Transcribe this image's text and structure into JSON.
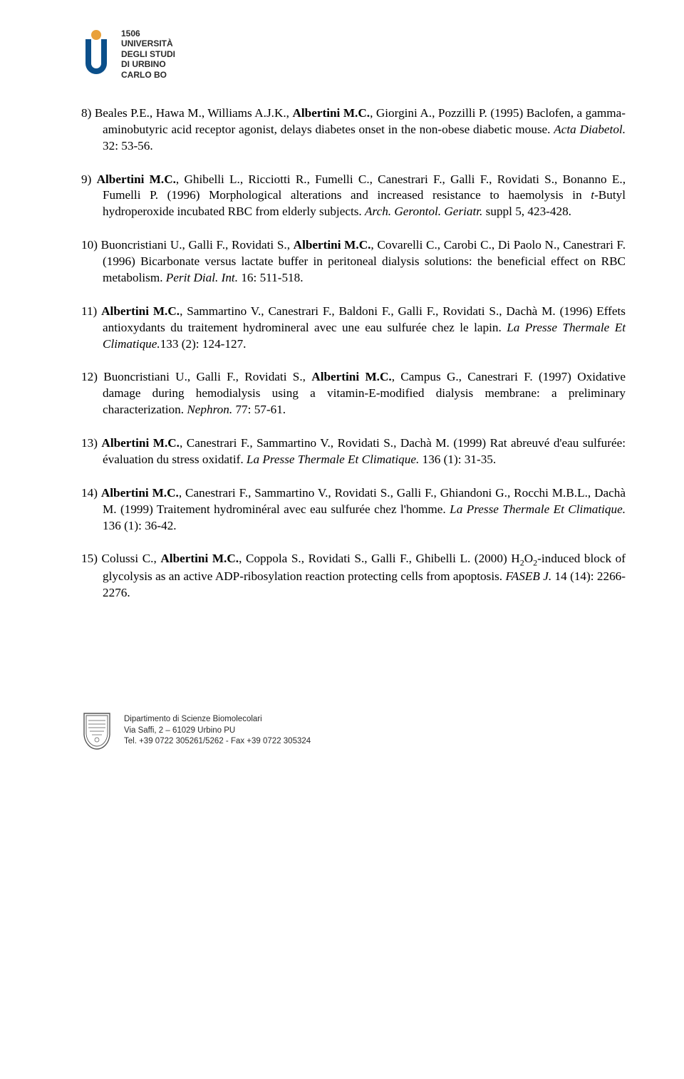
{
  "institution": {
    "year": "1506",
    "line1": "UNIVERSITÀ",
    "line2": "DEGLI STUDI",
    "line3": "DI URBINO",
    "line4": "CARLO BO",
    "logo_colors": {
      "blue": "#0b4f8a",
      "orange": "#e9a13b"
    }
  },
  "references": [
    {
      "num": "8)",
      "parts": [
        {
          "t": "Beales P.E., Hawa M., Williams A.J.K., "
        },
        {
          "t": "Albertini M.",
          "b": true
        },
        {
          "t": "C.",
          "b": true
        },
        {
          "t": ", Giorgini A., Pozzilli P. (1995) Baclofen, a gamma-aminobutyric acid receptor agonist, delays diabetes onset in the non-obese diabetic mouse. "
        },
        {
          "t": "Acta Diabetol.",
          "i": true
        },
        {
          "t": " 32: 53-56."
        }
      ]
    },
    {
      "num": "9)",
      "parts": [
        {
          "t": "Albertini M.",
          "b": true
        },
        {
          "t": "C.",
          "b": true
        },
        {
          "t": ", Ghibelli L., Ricciotti R., Fumelli C., Canestrari F., Galli F., Rovidati S., Bonanno E., Fumelli P. (1996) Morphological alterations and increased resistance to haemolysis in "
        },
        {
          "t": "t",
          "i": true
        },
        {
          "t": "-Butyl hydroperoxide incubated RBC from elderly subjects. "
        },
        {
          "t": "Arch. Gerontol. Geriatr.",
          "i": true
        },
        {
          "t": " suppl 5, 423-428."
        }
      ]
    },
    {
      "num": "10)",
      "parts": [
        {
          "t": "Buoncristiani U., Galli F., Rovidati S., "
        },
        {
          "t": "Albertini M.",
          "b": true
        },
        {
          "t": "C.",
          "b": true
        },
        {
          "t": ", Covarelli C., Carobi C., Di Paolo N., Canestrari F. (1996) Bicarbonate versus lactate buffer in peritoneal dialysis solutions: the beneficial effect on RBC metabolism. "
        },
        {
          "t": "Perit Dial. Int.",
          "i": true
        },
        {
          "t": " 16: 511-518."
        }
      ]
    },
    {
      "num": "11)",
      "parts": [
        {
          "t": "Albertini M.",
          "b": true
        },
        {
          "t": "C.",
          "b": true
        },
        {
          "t": ", Sammartino V., Canestrari F., Baldoni F., Galli F., Rovidati S., Dachà M. (1996) Effets antioxydants du traitement hydromineral avec une eau sulfurée chez le lapin. "
        },
        {
          "t": "La Presse Thermale Et Climatique.",
          "i": true
        },
        {
          "t": "133 (2): 124-127."
        }
      ]
    },
    {
      "num": "12)",
      "parts": [
        {
          "t": "Buoncristiani U., Galli F., Rovidati S., "
        },
        {
          "t": "Albertini M.",
          "b": true
        },
        {
          "t": "C.",
          "b": true
        },
        {
          "t": ", Campus G., Canestrari F. (1997) Oxidative damage during hemodialysis using a vitamin-E-modified dialysis membrane: a preliminary characterization. "
        },
        {
          "t": "Nephron.",
          "i": true
        },
        {
          "t": " 77: 57-61."
        }
      ]
    },
    {
      "num": "13)",
      "parts": [
        {
          "t": "Albertini M.",
          "b": true
        },
        {
          "t": "C.",
          "b": true
        },
        {
          "t": ", Canestrari F., Sammartino V., Rovidati S., Dachà M. (1999) Rat abreuvé d'eau sulfurée: évaluation du stress oxidatif. "
        },
        {
          "t": "La Presse Thermale Et Climatique.",
          "i": true
        },
        {
          "t": " 136 (1): 31-35."
        }
      ]
    },
    {
      "num": "14)",
      "parts": [
        {
          "t": "Albertini M.",
          "b": true
        },
        {
          "t": "C.",
          "b": true
        },
        {
          "t": ", Canestrari F., Sammartino V., Rovidati S., Galli F., Ghiandoni G., Rocchi M.B.L., Dachà M. (1999) Traitement hydrominéral avec eau sulfurée chez l'homme. "
        },
        {
          "t": "La Presse Thermale Et Climatique.",
          "i": true
        },
        {
          "t": " 136 (1): 36-42."
        }
      ]
    },
    {
      "num": "15)",
      "parts": [
        {
          "t": "Colussi C., "
        },
        {
          "t": "Albertini M.",
          "b": true
        },
        {
          "t": "C.",
          "b": true
        },
        {
          "t": ", Coppola S., Rovidati S., Galli F., Ghibelli L. (2000) H"
        },
        {
          "t": "2",
          "sub": true
        },
        {
          "t": "O"
        },
        {
          "t": "2",
          "sub": true
        },
        {
          "t": "-induced block of glycolysis as an active ADP-ribosylation reaction protecting cells from apoptosis. "
        },
        {
          "t": "FASEB J.",
          "i": true
        },
        {
          "t": " 14 (14): 2266-2276."
        }
      ]
    }
  ],
  "footer": {
    "line1": "Dipartimento di Scienze Biomolecolari",
    "line2": "Via Saffi, 2 – 61029 Urbino PU",
    "line3": "Tel. +39 0722 305261/5262 - Fax +39 0722 305324",
    "crest_color": "#555555"
  }
}
